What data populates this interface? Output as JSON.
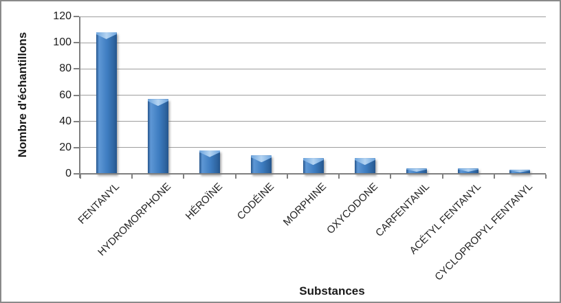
{
  "frame": {
    "background": "#ffffff",
    "border_color": "#8a8a8a"
  },
  "chart_data": {
    "type": "bar",
    "title": "",
    "categories": [
      "FENTANYL",
      "HYDROMORPHONE",
      "HÉROÏNE",
      "CODÉINE",
      "MORPHINE",
      "OXYCODONE",
      "CARFENTANIL",
      "ACÉTYL FENTANYL",
      "CYCLOPROPYL FENTANYL"
    ],
    "values": [
      108,
      57,
      18,
      14,
      12,
      12,
      4,
      4,
      3
    ],
    "xlabel": "Substances",
    "ylabel": "Nombre d'échantillons",
    "ylim": [
      0,
      120
    ],
    "ytick_step": 20,
    "yticks": [
      0,
      20,
      40,
      60,
      80,
      100,
      120
    ],
    "grid": "horizontal",
    "legend": "none",
    "colors": {
      "bar_main": "#3d7cc0",
      "bar_light": "#5e97d5",
      "bar_edge": "#24548c",
      "bar_cap_light": "#b4d4f2",
      "bar_cap_mid": "#6ea5de",
      "gridline": "#9d9d9d",
      "axis": "#7f7f7f",
      "text": "#1a1a1a"
    }
  }
}
